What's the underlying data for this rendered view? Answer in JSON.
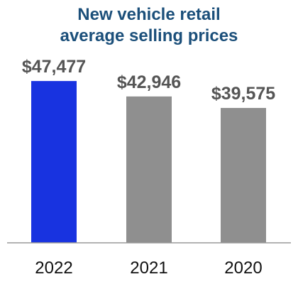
{
  "chart_data": {
    "type": "bar",
    "title_lines": [
      "New vehicle retail",
      "average selling prices"
    ],
    "categories": [
      "2022",
      "2021",
      "2020"
    ],
    "values": [
      47477,
      42946,
      39575
    ],
    "value_labels": [
      "$47,477",
      "$42,946",
      "$39,575"
    ],
    "bar_colors": [
      "#1833e0",
      "#8f8f8f",
      "#8f8f8f"
    ],
    "label_colors": [
      "#555555",
      "#555555",
      "#555555"
    ],
    "title_color": "#1b4f7a",
    "ylim": [
      0,
      50000
    ],
    "grid": false,
    "legend": "none"
  }
}
